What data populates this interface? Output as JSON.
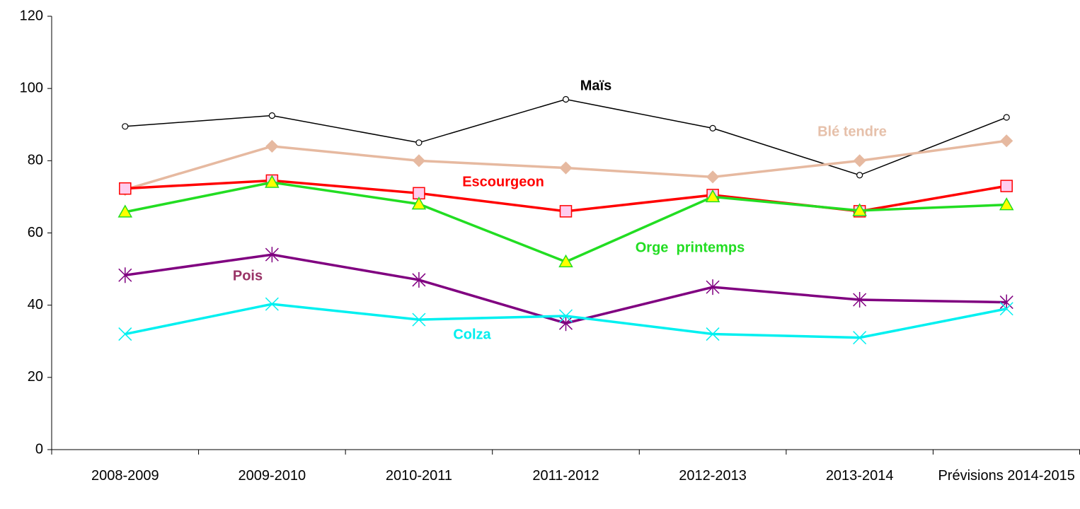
{
  "chart_data": {
    "type": "line",
    "categories": [
      "2008-2009",
      "2009-2010",
      "2010-2011",
      "2011-2012",
      "2012-2013",
      "2013-2014",
      "Prévisions 2014-2015"
    ],
    "series": [
      {
        "name": "Maïs",
        "color": "#000000",
        "marker": "circle",
        "marker_fill": "#ffffff",
        "label_color": "#000000",
        "values": [
          89.5,
          92.5,
          85,
          97,
          89,
          76,
          92
        ]
      },
      {
        "name": "Blé tendre",
        "color": "#e6b9a0",
        "marker": "diamond",
        "marker_fill": "#e6b9a0",
        "label_color": "#e6c0aa",
        "values": [
          72,
          84,
          80,
          78,
          75.5,
          80,
          85.5
        ]
      },
      {
        "name": "Escourgeon",
        "color": "#ff0000",
        "marker": "square",
        "marker_fill": "#ffccee",
        "label_color": "#ff0000",
        "values": [
          72.3,
          74.5,
          71,
          66,
          70.5,
          66,
          73
        ]
      },
      {
        "name": "Orge  printemps",
        "color": "#22dd22",
        "marker": "triangle",
        "marker_fill": "#ffff00",
        "label_color": "#22dd22",
        "values": [
          65.8,
          74,
          68,
          52,
          70,
          66.2,
          67.8
        ]
      },
      {
        "name": "Pois",
        "color": "#800080",
        "marker": "asterisk",
        "marker_fill": "none",
        "label_color": "#993366",
        "values": [
          48.3,
          54,
          47,
          35,
          45,
          41.5,
          40.8
        ]
      },
      {
        "name": "Colza",
        "color": "#00f0f0",
        "marker": "x",
        "marker_fill": "none",
        "label_color": "#00eeee",
        "values": [
          32,
          40.3,
          36,
          37,
          32,
          31,
          39
        ]
      }
    ],
    "ylim": [
      0,
      120
    ],
    "yticks": [
      0,
      20,
      40,
      60,
      80,
      100,
      120
    ],
    "grid": false
  }
}
